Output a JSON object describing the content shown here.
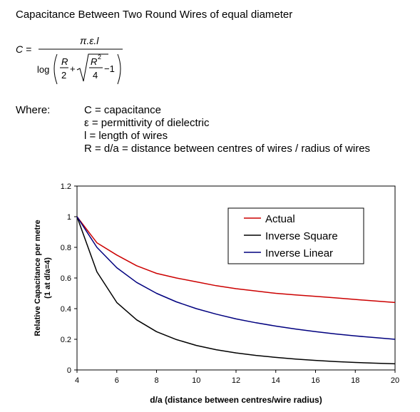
{
  "header": {
    "title": "Capacitance Between Two Round Wires of equal diameter"
  },
  "formula": {
    "lhs": "C =",
    "numerator": "π.ε.l",
    "log": "log",
    "r": "R",
    "two": "2",
    "plus": "+",
    "r_sq": "R",
    "sq_exp": "2",
    "four": "4",
    "minus_one": "−1"
  },
  "where": {
    "label": "Where:",
    "definitions": [
      "C = capacitance",
      "ε  = permittivity of dielectric",
      "l  = length of wires",
      "R = d/a = distance between centres of wires / radius of wires"
    ]
  },
  "chart_data": {
    "type": "line",
    "xlabel": "d/a (distance between centres/wire radius)",
    "ylabel": "Relative Capacitance per metre\n(1 at d/a=4)",
    "xlim": [
      4,
      20
    ],
    "ylim": [
      0,
      1.2
    ],
    "xticks": [
      "4",
      "6",
      "8",
      "10",
      "12",
      "14",
      "16",
      "18",
      "20"
    ],
    "yticks": [
      "0",
      "0.2",
      "0.4",
      "0.6",
      "0.8",
      "1",
      "1.2"
    ],
    "grid": false,
    "legend_position": "top-right",
    "x": [
      4,
      5,
      6,
      7,
      8,
      9,
      10,
      11,
      12,
      13,
      14,
      15,
      16,
      17,
      18,
      19,
      20
    ],
    "series": [
      {
        "name": "Actual",
        "color": "#cc0000",
        "values": [
          1.0,
          0.83,
          0.75,
          0.68,
          0.63,
          0.6,
          0.575,
          0.55,
          0.53,
          0.515,
          0.5,
          0.49,
          0.48,
          0.47,
          0.46,
          0.45,
          0.44
        ]
      },
      {
        "name": "Inverse Square",
        "color": "#000000",
        "values": [
          1.0,
          0.64,
          0.44,
          0.327,
          0.25,
          0.198,
          0.16,
          0.132,
          0.111,
          0.095,
          0.082,
          0.071,
          0.0625,
          0.055,
          0.049,
          0.044,
          0.04
        ]
      },
      {
        "name": "Inverse Linear",
        "color": "#00007f",
        "values": [
          1.0,
          0.8,
          0.667,
          0.571,
          0.5,
          0.444,
          0.4,
          0.364,
          0.333,
          0.308,
          0.286,
          0.267,
          0.25,
          0.235,
          0.222,
          0.211,
          0.2
        ]
      }
    ]
  }
}
